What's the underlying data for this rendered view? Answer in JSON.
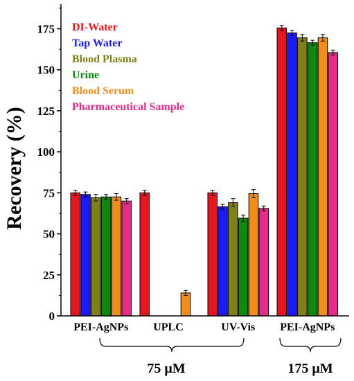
{
  "chart_data": {
    "type": "bar",
    "ylabel": "Recovery (%)",
    "xlabel": "",
    "title": "",
    "ylim": [
      0,
      190
    ],
    "yticks": [
      0,
      25,
      50,
      75,
      100,
      125,
      150,
      175
    ],
    "grid": false,
    "legend_position": "top-left",
    "categories": [
      "PEI-AgNPs",
      "UPLC",
      "UV-Vis",
      "PEI-AgNPs"
    ],
    "groups": [
      {
        "label": "75 μM",
        "categories": [
          0,
          1,
          2
        ]
      },
      {
        "label": "175 μM",
        "categories": [
          3
        ]
      }
    ],
    "series": [
      {
        "name": "DI-Water",
        "color": "#e8151f",
        "values": [
          75,
          75,
          75,
          175.5
        ],
        "errors": [
          1.5,
          1.5,
          1.5,
          1.5
        ]
      },
      {
        "name": "Tap Water",
        "color": "#1a1aff",
        "values": [
          74,
          0,
          66.5,
          172.5
        ],
        "errors": [
          1.5,
          0,
          1.5,
          1.5
        ]
      },
      {
        "name": "Blood Plasma",
        "color": "#808018",
        "values": [
          72,
          0,
          69,
          169.5
        ],
        "errors": [
          2,
          0,
          2.5,
          2
        ]
      },
      {
        "name": "Urine",
        "color": "#0c8a0c",
        "values": [
          72.5,
          0,
          59.5,
          166.5
        ],
        "errors": [
          1.5,
          0,
          2,
          1.5
        ]
      },
      {
        "name": "Blood Serum",
        "color": "#f28c1a",
        "values": [
          72.5,
          14,
          74.5,
          169.5
        ],
        "errors": [
          2,
          1.5,
          2.5,
          2
        ]
      },
      {
        "name": "Pharmaceutical Sample",
        "color": "#e82a8a",
        "values": [
          70,
          0,
          65.5,
          160.5
        ],
        "errors": [
          1.5,
          0,
          1.5,
          1.5
        ]
      }
    ]
  }
}
